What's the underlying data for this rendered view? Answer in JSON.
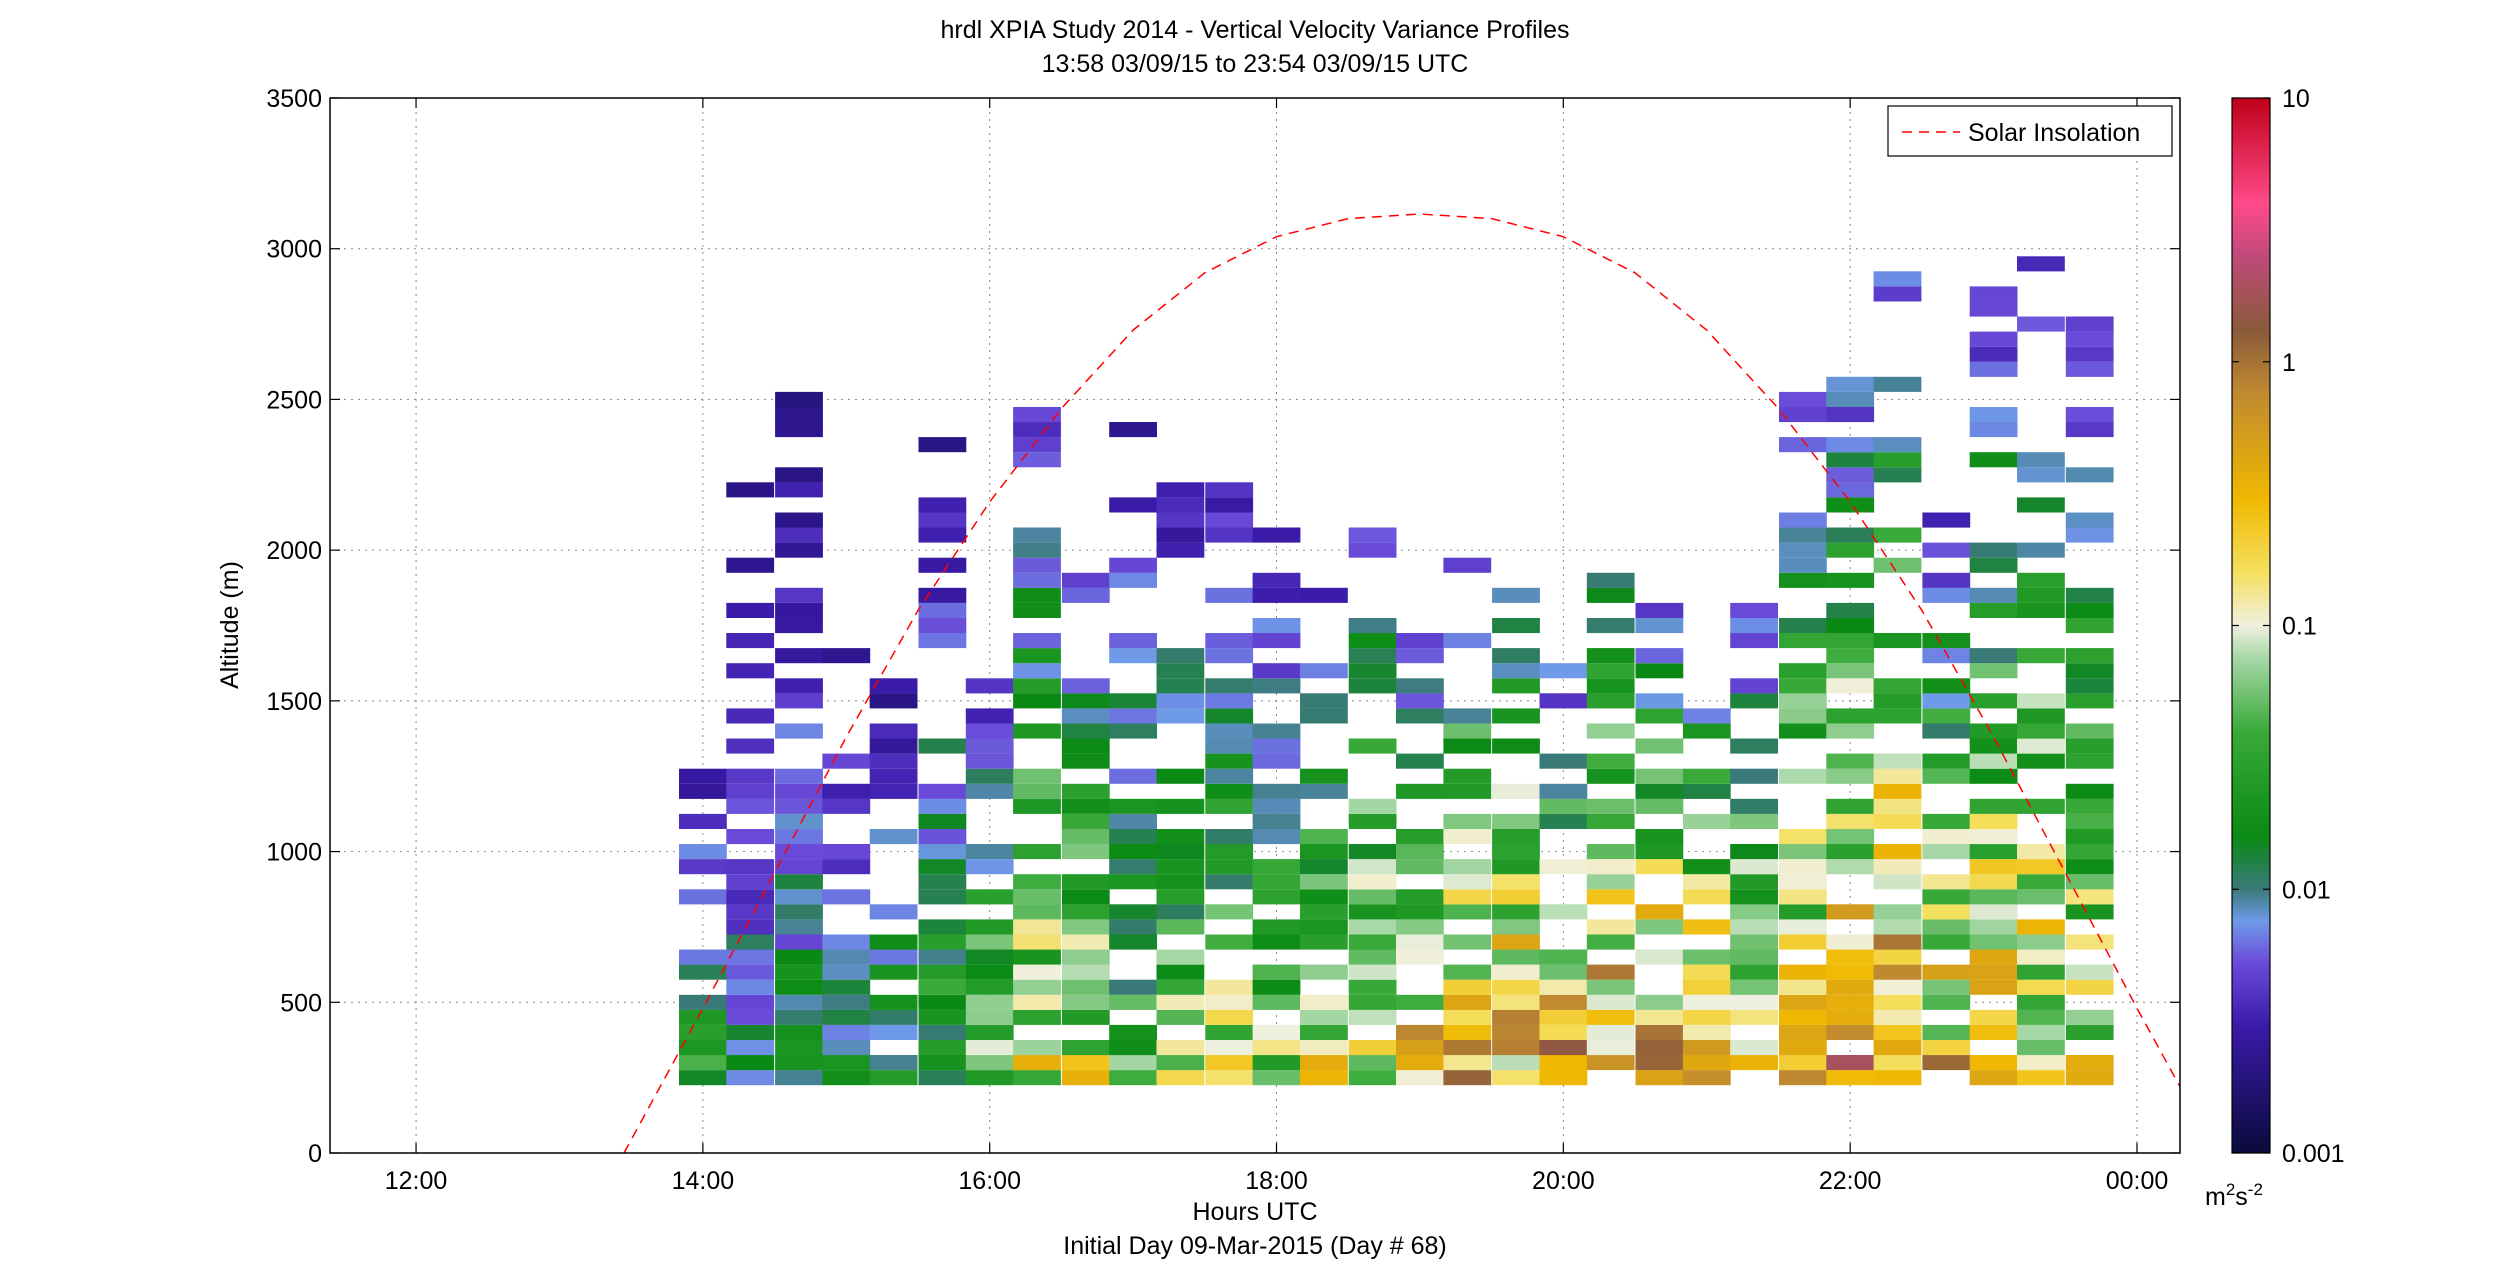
{
  "title_line1": "hrdl XPIA Study 2014 - Vertical Velocity Variance Profiles",
  "title_line2": "13:58 03/09/15 to 23:54 03/09/15  UTC",
  "chart_data": {
    "type": "heatmap",
    "title": "hrdl XPIA Study 2014 - Vertical Velocity Variance Profiles",
    "subtitle": "13:58 03/09/15 to 23:54 03/09/15  UTC",
    "xlabel": "Hours UTC",
    "xlabel2": "Initial Day 09-Mar-2015 (Day # 68)",
    "ylabel": "Altitude (m)",
    "x_unit": "hours UTC",
    "xlim": [
      11.4,
      24.3
    ],
    "ylim": [
      0,
      3500
    ],
    "x_ticks": [
      12,
      14,
      16,
      18,
      20,
      22,
      24
    ],
    "x_tick_labels": [
      "12:00",
      "14:00",
      "16:00",
      "18:00",
      "20:00",
      "22:00",
      "00:00"
    ],
    "y_ticks": [
      0,
      500,
      1000,
      1500,
      2000,
      2500,
      3000,
      3500
    ],
    "y_tick_labels": [
      "0",
      "500",
      "1000",
      "1500",
      "2000",
      "2500",
      "3000",
      "3500"
    ],
    "grid": true,
    "colorbar": {
      "scale": "log",
      "range": [
        0.001,
        10
      ],
      "ticks": [
        0.001,
        0.01,
        0.1,
        1,
        10
      ],
      "tick_labels": [
        "0.001",
        "0.01",
        "0.1",
        "1",
        "10"
      ],
      "unit_base": "m",
      "unit_sup1": "2",
      "unit_mid": "s",
      "unit_sup2": "-2"
    },
    "legend": {
      "entries": [
        "Solar Insolation"
      ],
      "placement": "top-right"
    },
    "solar_insolation": {
      "style": "red-dashed",
      "points": [
        [
          13.45,
          0
        ],
        [
          14.0,
          480
        ],
        [
          14.5,
          930
        ],
        [
          15.0,
          1380
        ],
        [
          15.5,
          1800
        ],
        [
          16.0,
          2160
        ],
        [
          16.5,
          2470
        ],
        [
          17.0,
          2730
        ],
        [
          17.5,
          2920
        ],
        [
          18.0,
          3040
        ],
        [
          18.5,
          3100
        ],
        [
          19.0,
          3115
        ],
        [
          19.5,
          3100
        ],
        [
          20.0,
          3040
        ],
        [
          20.5,
          2920
        ],
        [
          21.0,
          2730
        ],
        [
          21.5,
          2470
        ],
        [
          22.0,
          2160
        ],
        [
          22.5,
          1800
        ],
        [
          23.0,
          1380
        ],
        [
          23.5,
          930
        ],
        [
          24.0,
          480
        ],
        [
          24.3,
          220
        ]
      ]
    },
    "profiles": {
      "bin_width_hours": 0.333,
      "bin_height_m": 50,
      "columns": [
        {
          "t": 14.0,
          "tops": 1400,
          "max": 0.05
        },
        {
          "t": 14.33,
          "tops": 2200,
          "max": 0.02
        },
        {
          "t": 14.67,
          "tops": 2480,
          "max": 0.03
        },
        {
          "t": 15.0,
          "tops": 1650,
          "max": 0.04
        },
        {
          "t": 15.33,
          "tops": 1650,
          "max": 0.05
        },
        {
          "t": 15.67,
          "tops": 2400,
          "max": 0.06
        },
        {
          "t": 16.0,
          "tops": 1650,
          "max": 0.3
        },
        {
          "t": 16.33,
          "tops": 2480,
          "max": 0.5
        },
        {
          "t": 16.67,
          "tops": 1950,
          "max": 0.6
        },
        {
          "t": 17.0,
          "tops": 2400,
          "max": 0.1
        },
        {
          "t": 17.33,
          "tops": 2200,
          "max": 0.2
        },
        {
          "t": 17.67,
          "tops": 2200,
          "max": 0.3
        },
        {
          "t": 18.0,
          "tops": 2050,
          "max": 0.3
        },
        {
          "t": 18.33,
          "tops": 1850,
          "max": 0.5
        },
        {
          "t": 18.67,
          "tops": 2200,
          "max": 0.7
        },
        {
          "t": 19.0,
          "tops": 1700,
          "max": 1.5
        },
        {
          "t": 19.33,
          "tops": 2100,
          "max": 2.0
        },
        {
          "t": 19.67,
          "tops": 2050,
          "max": 2.0
        },
        {
          "t": 20.0,
          "tops": 1600,
          "max": 2.5
        },
        {
          "t": 20.33,
          "tops": 2050,
          "max": 4.0
        },
        {
          "t": 20.67,
          "tops": 1900,
          "max": 4.0
        },
        {
          "t": 21.0,
          "tops": 1600,
          "max": 4.0
        },
        {
          "t": 21.33,
          "tops": 1800,
          "max": 1.0
        },
        {
          "t": 21.67,
          "tops": 2550,
          "max": 1.2
        },
        {
          "t": 22.0,
          "tops": 2560,
          "max": 3.0
        },
        {
          "t": 22.33,
          "tops": 2900,
          "max": 4.0
        },
        {
          "t": 22.67,
          "tops": 2100,
          "max": 1.5
        },
        {
          "t": 23.0,
          "tops": 2880,
          "max": 1.0
        },
        {
          "t": 23.33,
          "tops": 3000,
          "max": 1.0
        },
        {
          "t": 23.67,
          "tops": 2750,
          "max": 0.6
        }
      ]
    }
  }
}
